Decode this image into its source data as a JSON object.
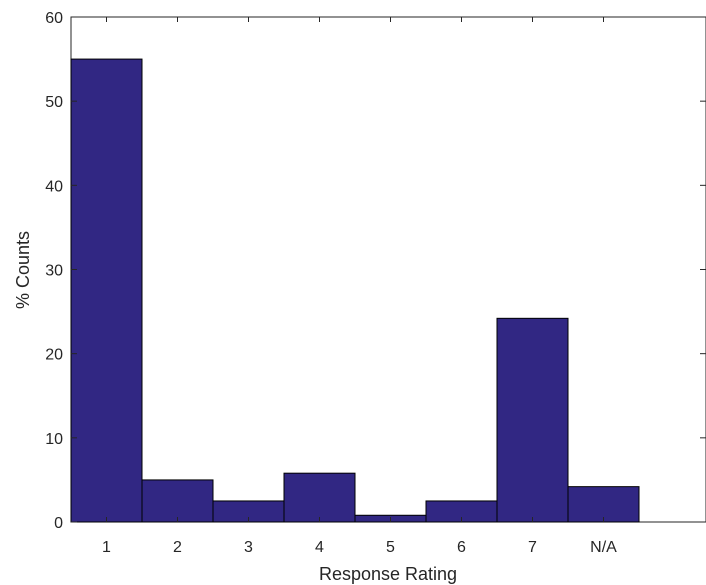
{
  "chart_data": {
    "type": "bar",
    "categories": [
      "1",
      "2",
      "3",
      "4",
      "5",
      "6",
      "7",
      "N/A"
    ],
    "values": [
      55,
      5,
      2.5,
      5.8,
      0.8,
      2.5,
      24.2,
      4.2
    ],
    "xlabel": "Response Rating",
    "ylabel": "% Counts",
    "ylim": [
      0,
      60
    ],
    "yticks": [
      0,
      10,
      20,
      30,
      40,
      50,
      60
    ],
    "grid": false,
    "bar_color": "#312783"
  }
}
